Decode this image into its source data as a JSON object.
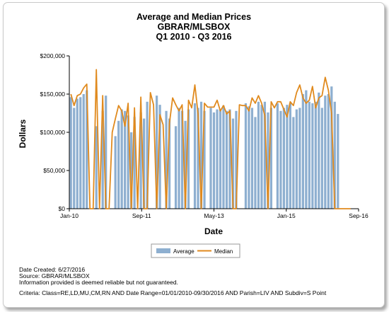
{
  "chart_data": {
    "type": "bar",
    "title": [
      "Average and Median Prices",
      "GBRAR/MLSBOX",
      "Q1 2010 - Q3 2016"
    ],
    "xlabel": "Date",
    "ylabel": "Dollars",
    "ylim": [
      0,
      200000
    ],
    "yticks": [
      "$0",
      "$50,000",
      "$100,000",
      "$150,000",
      "$200,000"
    ],
    "xticks": [
      "Jan-10",
      "Sep-11",
      "May-13",
      "Jan-15",
      "Sep-16"
    ],
    "grid": false,
    "legend_position": "bottom-center",
    "x_start": "2010-01",
    "x_end": "2016-09",
    "series": [
      {
        "name": "Average",
        "type": "bar",
        "color": "#8eafd0",
        "values": [
          146000,
          132000,
          144000,
          146000,
          150000,
          155000,
          0,
          0,
          108000,
          0,
          128000,
          148000,
          0,
          0,
          95000,
          115000,
          130000,
          128000,
          122000,
          100000,
          120000,
          0,
          126000,
          118000,
          140000,
          0,
          0,
          148000,
          136000,
          0,
          128000,
          118000,
          0,
          108000,
          132000,
          128000,
          115000,
          130000,
          0,
          138000,
          132000,
          140000,
          128000,
          0,
          132000,
          126000,
          130000,
          130000,
          135000,
          128000,
          130000,
          118000,
          128000,
          0,
          0,
          138000,
          134000,
          132000,
          120000,
          140000,
          136000,
          140000,
          126000,
          132000,
          0,
          138000,
          128000,
          132000,
          136000,
          138000,
          120000,
          130000,
          132000,
          150000,
          155000,
          140000,
          138000,
          140000,
          152000,
          132000,
          148000,
          150000,
          160000,
          140000,
          124000,
          0,
          0,
          0,
          0,
          0,
          0
        ]
      },
      {
        "name": "Median",
        "type": "line",
        "color": "#e08a1e",
        "values": [
          150000,
          135000,
          148000,
          150000,
          158000,
          163000,
          0,
          0,
          182000,
          0,
          148000,
          0,
          0,
          100000,
          118000,
          135000,
          128000,
          108000,
          138000,
          0,
          132000,
          0,
          146000,
          0,
          0,
          152000,
          136000,
          0,
          123000,
          110000,
          0,
          112000,
          145000,
          136000,
          128000,
          136000,
          0,
          142000,
          132000,
          162000,
          124000,
          0,
          138000,
          133000,
          133000,
          133000,
          142000,
          128000,
          135000,
          124000,
          128000,
          0,
          0,
          136000,
          135000,
          135000,
          128000,
          145000,
          138000,
          148000,
          138000,
          122000,
          0,
          140000,
          132000,
          140000,
          140000,
          130000,
          120000,
          140000,
          135000,
          152000,
          162000,
          145000,
          138000,
          142000,
          160000,
          132000,
          145000,
          148000,
          172000,
          155000,
          125000,
          0,
          0,
          0,
          0,
          0,
          0
        ]
      }
    ]
  },
  "legend": {
    "items": [
      "Average",
      "Median"
    ]
  },
  "footer": {
    "date_created": "Date Created: 6/27/2016",
    "source": "Source: GBRAR/MLSBOX",
    "disclaimer": "Information provided is deemed reliable but not guaranteed.",
    "criteria": "Criteria: Class=RE,LD,MU,CM,RN AND Date Range=01/01/2010-09/30/2016 AND Parish=LIV AND Subdiv=S Point"
  }
}
